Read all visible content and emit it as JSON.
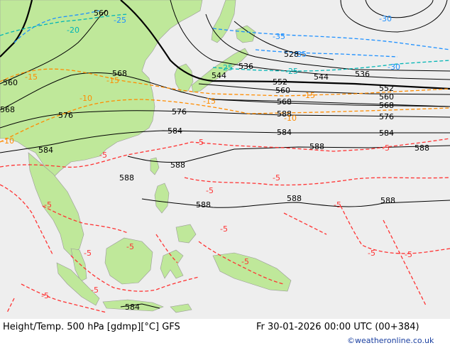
{
  "product": {
    "title": "Height/Temp. 500 hPa [gdmp][°C] GFS",
    "valid_time": "Fr 30-01-2026 00:00 UTC (00+384)",
    "credit": "©weatheronline.co.uk"
  },
  "colors": {
    "sea": "#eeeeee",
    "land": "#bfe89a",
    "height_contour": "#000000",
    "temp_warm": "#ff3333",
    "temp_mid": "#ff8c00",
    "temp_cool": "#00b5b5",
    "temp_cold": "#1e90ff"
  },
  "height_labels": [
    "560",
    "568",
    "560",
    "568",
    "576",
    "584",
    "588",
    "588",
    "588",
    "588",
    "588",
    "588",
    "584",
    "544",
    "536",
    "528",
    "552",
    "560",
    "568",
    "576",
    "584",
    "588",
    "544",
    "536",
    "552",
    "560",
    "568",
    "576",
    "584",
    "588",
    "584"
  ],
  "temp_labels": [
    "-20",
    "-25",
    "-15",
    "-15",
    "-10",
    "-10",
    "-5",
    "-5",
    "-5",
    "-5",
    "-5",
    "-5",
    "-5",
    "-5",
    "-5",
    "-5",
    "-5",
    "-5",
    "-35",
    "-35",
    "-25",
    "-30",
    "-25",
    "-15",
    "-15",
    "-10",
    "-30",
    "-5",
    "-5",
    "-5"
  ]
}
